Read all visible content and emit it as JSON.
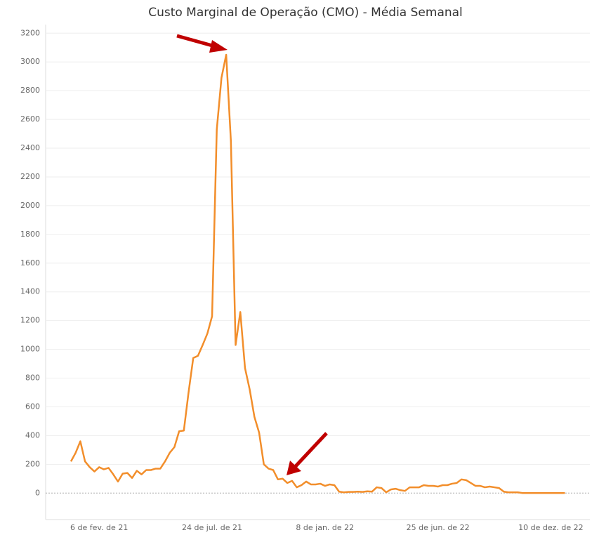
{
  "chart_data": {
    "type": "line",
    "title": "Custo Marginal de Operação (CMO) - Média Semanal",
    "categories": [
      null,
      null,
      null,
      null,
      null,
      null,
      "6 de fev. de 21",
      null,
      null,
      null,
      null,
      null,
      null,
      null,
      null,
      null,
      null,
      null,
      null,
      null,
      null,
      null,
      null,
      null,
      null,
      null,
      null,
      null,
      null,
      null,
      "24 de jul. de 21",
      null,
      null,
      null,
      null,
      null,
      null,
      null,
      null,
      null,
      null,
      null,
      null,
      null,
      null,
      null,
      null,
      null,
      null,
      null,
      null,
      null,
      null,
      null,
      "8 de jan. de 22",
      null,
      null,
      null,
      null,
      null,
      null,
      null,
      null,
      null,
      null,
      null,
      null,
      null,
      null,
      null,
      null,
      null,
      null,
      null,
      null,
      null,
      null,
      null,
      "25 de jun. de 22",
      null,
      null,
      null,
      null,
      null,
      null,
      null,
      null,
      null,
      null,
      null,
      null,
      null,
      null,
      null,
      null,
      null,
      null,
      null,
      null,
      null,
      null,
      null,
      "10 de dez. de 22",
      null,
      null,
      null
    ],
    "series": [
      {
        "color": "#f28e2b",
        "values": [
          220,
          280,
          360,
          220,
          180,
          150,
          180,
          165,
          175,
          130,
          80,
          135,
          140,
          105,
          155,
          130,
          160,
          160,
          170,
          170,
          220,
          280,
          320,
          430,
          435,
          700,
          940,
          955,
          1030,
          1110,
          1230,
          2530,
          2890,
          3050,
          2450,
          1030,
          1260,
          870,
          720,
          530,
          420,
          200,
          170,
          160,
          95,
          100,
          70,
          85,
          40,
          55,
          80,
          60,
          60,
          65,
          50,
          60,
          55,
          10,
          5,
          8,
          8,
          10,
          8,
          12,
          10,
          40,
          35,
          5,
          25,
          30,
          20,
          15,
          40,
          40,
          40,
          55,
          50,
          50,
          45,
          55,
          55,
          65,
          70,
          95,
          90,
          70,
          50,
          50,
          40,
          45,
          40,
          35,
          10,
          5,
          5,
          5,
          0,
          0,
          0,
          0,
          0,
          0,
          0,
          0,
          0,
          0
        ]
      }
    ],
    "ylim": [
      -160,
      3260
    ],
    "yticks": [
      0,
      200,
      400,
      600,
      800,
      1000,
      1200,
      1400,
      1600,
      1800,
      2000,
      2200,
      2400,
      2600,
      2800,
      3000,
      3200
    ],
    "grid": true
  }
}
